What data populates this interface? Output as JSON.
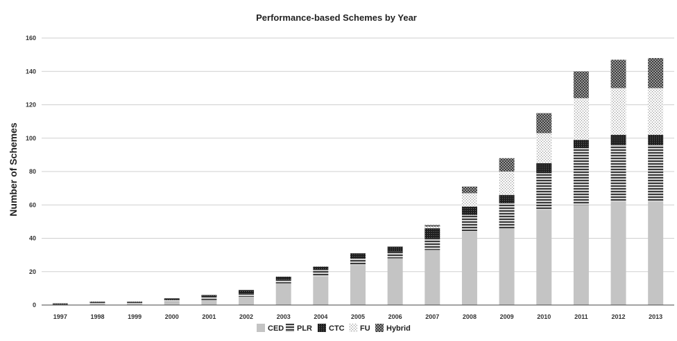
{
  "chart_data": {
    "type": "bar",
    "stacked": true,
    "title": "Performance-based Schemes by Year",
    "ylabel": "Number of Schemes",
    "xlabel": "",
    "ylim": [
      0,
      160
    ],
    "yticks": [
      0,
      20,
      40,
      60,
      80,
      100,
      120,
      140,
      160
    ],
    "grid": true,
    "legend_position": "bottom",
    "categories": [
      "1997",
      "1998",
      "1999",
      "2000",
      "2001",
      "2002",
      "2003",
      "2004",
      "2005",
      "2006",
      "2007",
      "2008",
      "2009",
      "2010",
      "2011",
      "2012",
      "2013"
    ],
    "series": [
      {
        "name": "CED",
        "pattern": "solid-light-gray",
        "values": [
          0,
          1,
          1,
          2,
          3,
          5,
          13,
          17,
          24,
          28,
          33,
          44,
          46,
          57,
          60,
          62,
          62
        ]
      },
      {
        "name": "PLR",
        "pattern": "horizontal-lines",
        "values": [
          0.5,
          0.5,
          0.5,
          1,
          2,
          2,
          2,
          4,
          4,
          4,
          7,
          10,
          15,
          22,
          34,
          34,
          34
        ]
      },
      {
        "name": "CTC",
        "pattern": "dark-dots",
        "values": [
          0.5,
          0.5,
          0.5,
          1,
          1,
          2,
          2,
          2,
          3,
          3,
          6,
          5,
          5,
          6,
          5,
          6,
          6
        ]
      },
      {
        "name": "FU",
        "pattern": "light-dots",
        "values": [
          0,
          0,
          0,
          0,
          0,
          0,
          0,
          0,
          0,
          0,
          1,
          8,
          14,
          18,
          25,
          28,
          28
        ]
      },
      {
        "name": "Hybrid",
        "pattern": "checkered",
        "values": [
          0,
          0,
          0,
          0,
          0,
          0,
          0,
          0,
          0,
          0,
          1,
          4,
          8,
          12,
          16,
          17,
          18
        ]
      }
    ]
  }
}
